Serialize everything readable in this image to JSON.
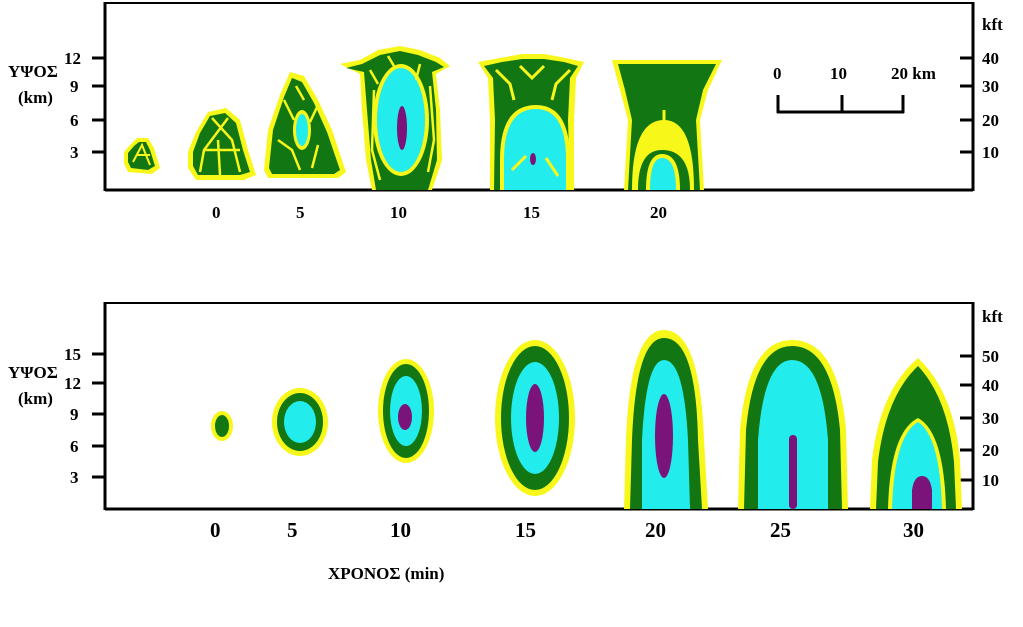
{
  "colors": {
    "yellow": "#f7f71a",
    "dark_green": "#127612",
    "cyan": "#22ecec",
    "purple": "#7a147a",
    "axis": "#000000",
    "background": "#ffffff"
  },
  "top_panel": {
    "y_axis_title_line1": "ΥΨΟΣ",
    "y_axis_title_line2": "(km)",
    "y_ticks_km": [
      "12",
      "9",
      "6",
      "3"
    ],
    "right_axis_unit": "kft",
    "right_ticks_kft": [
      "40",
      "30",
      "20",
      "10"
    ],
    "x_ticks": [
      "0",
      "5",
      "10",
      "15",
      "20"
    ],
    "scale_bar": {
      "labels": [
        "0",
        "10",
        "20 km"
      ]
    }
  },
  "bottom_panel": {
    "y_axis_title_line1": "ΥΨΟΣ",
    "y_axis_title_line2": "(km)",
    "y_ticks_km": [
      "15",
      "12",
      "9",
      "6",
      "3"
    ],
    "right_axis_unit": "kft",
    "right_ticks_kft": [
      "50",
      "40",
      "30",
      "20",
      "10"
    ],
    "x_ticks": [
      "0",
      "5",
      "10",
      "15",
      "20",
      "25",
      "30"
    ],
    "x_axis_title": "ΧΡΟΝΟΣ (min)"
  }
}
